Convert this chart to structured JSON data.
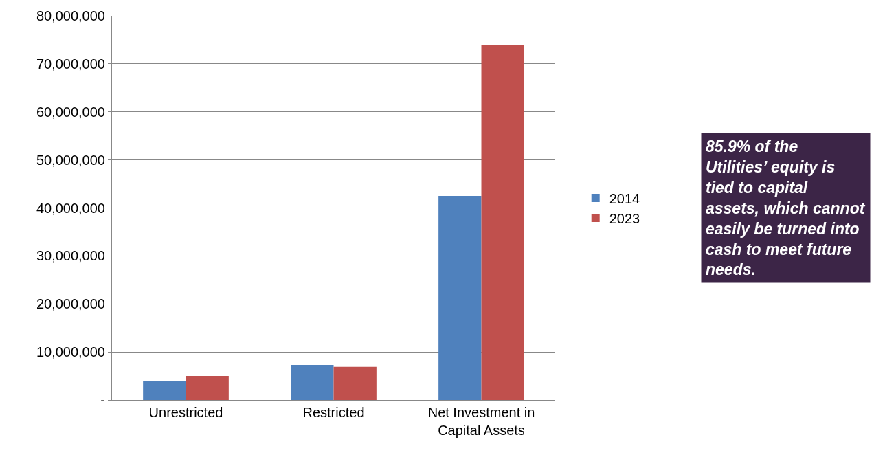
{
  "chart_data": {
    "type": "bar",
    "categories": [
      "Unrestricted",
      "Restricted",
      "Net Investment in Capital Assets"
    ],
    "series": [
      {
        "name": "2014",
        "color": "#4f81bd",
        "values": [
          3900000,
          7300000,
          42500000
        ]
      },
      {
        "name": "2023",
        "color": "#c0504d",
        "values": [
          5000000,
          6900000,
          74000000
        ]
      }
    ],
    "ylim": [
      0,
      80000000
    ],
    "yticks": [
      {
        "value": 0,
        "label": "-"
      },
      {
        "value": 10000000,
        "label": "10,000,000"
      },
      {
        "value": 20000000,
        "label": "20,000,000"
      },
      {
        "value": 30000000,
        "label": "30,000,000"
      },
      {
        "value": 40000000,
        "label": "40,000,000"
      },
      {
        "value": 50000000,
        "label": "50,000,000"
      },
      {
        "value": 60000000,
        "label": "60,000,000"
      },
      {
        "value": 70000000,
        "label": "70,000,000"
      },
      {
        "value": 80000000,
        "label": "80,000,000"
      }
    ],
    "grid": "y",
    "legend": "right",
    "annotations": [
      "85.9% of the Utilities’ equity is tied to capital assets, which cannot easily be turned into cash to meet future needs."
    ]
  }
}
